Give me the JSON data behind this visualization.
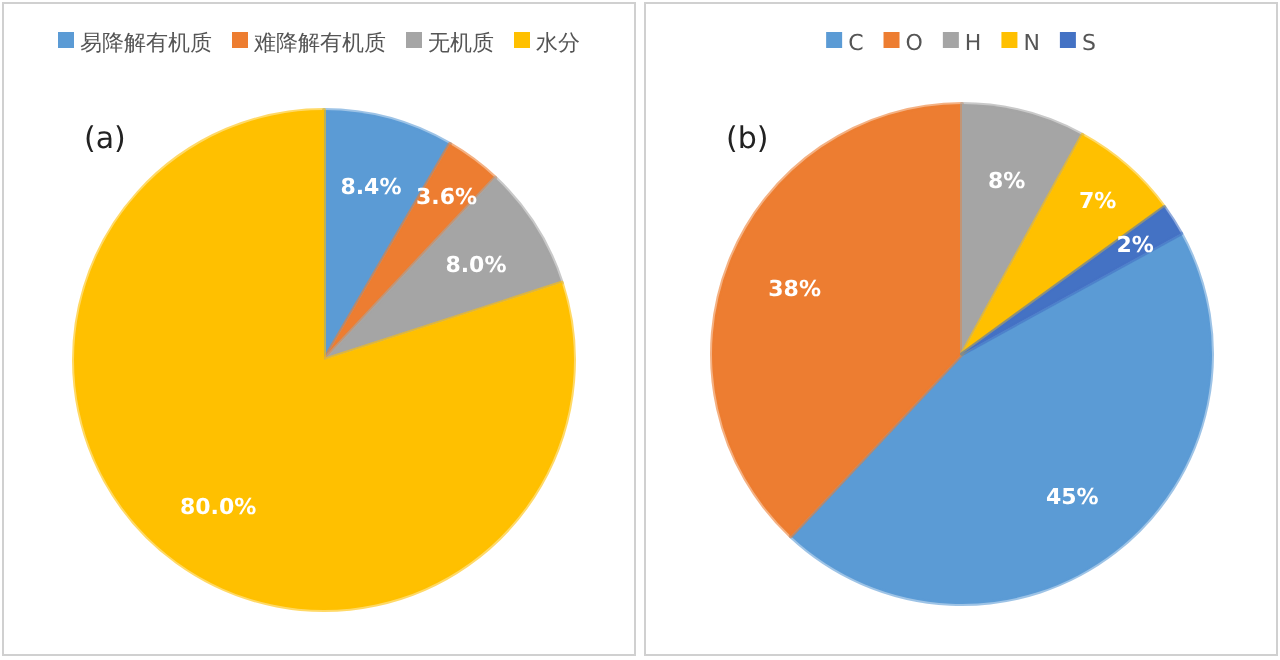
{
  "chart_data": [
    {
      "type": "pie",
      "title": "(a)",
      "legend": "top",
      "categories": [
        "易降解有机质",
        "难降解有机质",
        "无机质",
        "水分"
      ],
      "values": [
        8.4,
        3.6,
        8.0,
        80.0
      ],
      "value_labels": [
        "8.4%",
        "3.6%",
        "8.0%",
        "80.0%"
      ],
      "colors": [
        "#5b9bd5",
        "#ed7d31",
        "#a5a5a5",
        "#ffc000"
      ]
    },
    {
      "type": "pie",
      "title": "(b)",
      "legend": "top",
      "categories": [
        "C",
        "O",
        "H",
        "N",
        "S"
      ],
      "values": [
        45,
        38,
        8,
        7,
        2
      ],
      "value_labels": [
        "45%",
        "38%",
        "8%",
        "7%",
        "2%"
      ],
      "colors": [
        "#5b9bd5",
        "#ed7d31",
        "#a5a5a5",
        "#ffc000",
        "#4472c4"
      ]
    }
  ]
}
